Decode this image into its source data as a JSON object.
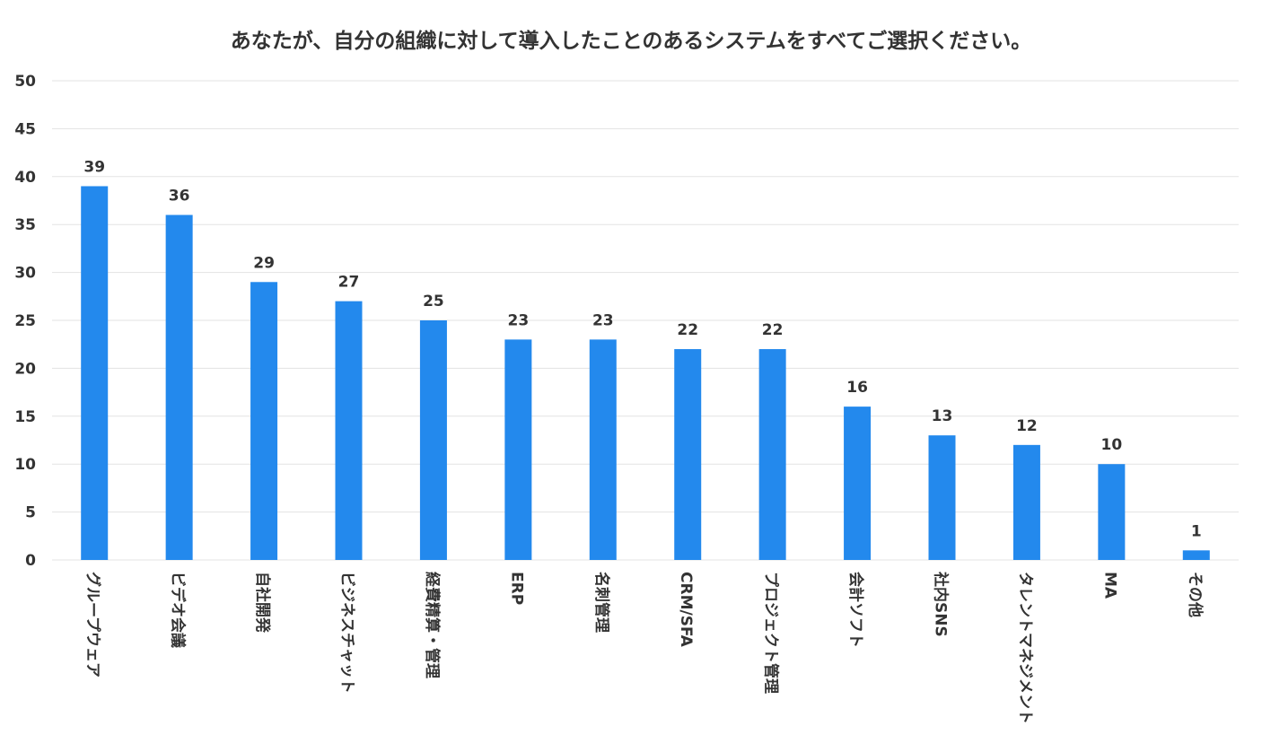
{
  "chart_data": {
    "type": "bar",
    "title": "あなたが、自分の組織に対して導入したことのあるシステムをすべてご選択ください。",
    "categories": [
      "グループウェア",
      "ビデオ会議",
      "自社開発",
      "ビジネスチャット",
      "経費精算・管理",
      "ERP",
      "名刺管理",
      "CRM/SFA",
      "プロジェクト管理",
      "会計ソフト",
      "社内SNS",
      "タレントマネジメント",
      "MA",
      "その他"
    ],
    "values": [
      39,
      36,
      29,
      27,
      25,
      23,
      23,
      22,
      22,
      16,
      13,
      12,
      10,
      1
    ],
    "ylim": [
      0,
      50
    ],
    "yticks": [
      0,
      5,
      10,
      15,
      20,
      25,
      30,
      35,
      40,
      45,
      50
    ],
    "xlabel": "",
    "ylabel": "",
    "grid": true,
    "legend": "none",
    "bar_color": "#2389ED",
    "grid_color": "#E3E3E3"
  }
}
